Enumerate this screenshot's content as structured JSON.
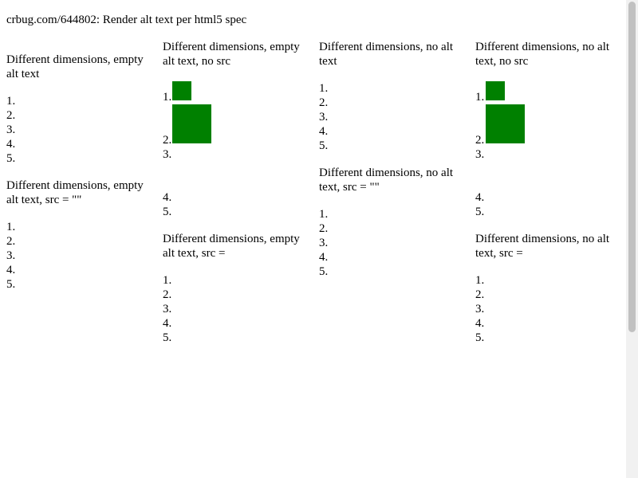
{
  "page_title": "crbug.com/644802: Render alt text per html5 spec",
  "columns": [
    {
      "sections": [
        {
          "title": "Different dimensions, empty alt text",
          "items": [
            "1.",
            "2.",
            "3.",
            "4.",
            "5."
          ]
        },
        {
          "title": "Different dimensions, empty alt text, src = \"\"",
          "items": [
            "1.",
            "2.",
            "3.",
            "4.",
            "5."
          ]
        }
      ]
    },
    {
      "sections": [
        {
          "title": "Different dimensions, empty alt text, no src",
          "items": [
            "1.",
            "2.",
            "3.",
            "4.",
            "5."
          ]
        },
        {
          "title": "Different dimensions, empty alt text, src =",
          "items": [
            "1.",
            "2.",
            "3.",
            "4.",
            "5."
          ]
        }
      ]
    },
    {
      "sections": [
        {
          "title": "Different dimensions, no alt text",
          "items": [
            "1.",
            "2.",
            "3.",
            "4.",
            "5."
          ]
        },
        {
          "title": "Different dimensions, no alt text, src = \"\"",
          "items": [
            "1.",
            "2.",
            "3.",
            "4.",
            "5."
          ]
        }
      ]
    },
    {
      "sections": [
        {
          "title": "Different dimensions, no alt text, no src",
          "items": [
            "1.",
            "2.",
            "3.",
            "4.",
            "5."
          ]
        },
        {
          "title": "Different dimensions, no alt text, src =",
          "items": [
            "1.",
            "2.",
            "3.",
            "4.",
            "5."
          ]
        }
      ]
    }
  ],
  "colors": {
    "image_fill": "#008000",
    "scrollbar_track": "#f1f1f1",
    "scrollbar_thumb": "#c1c1c1"
  }
}
